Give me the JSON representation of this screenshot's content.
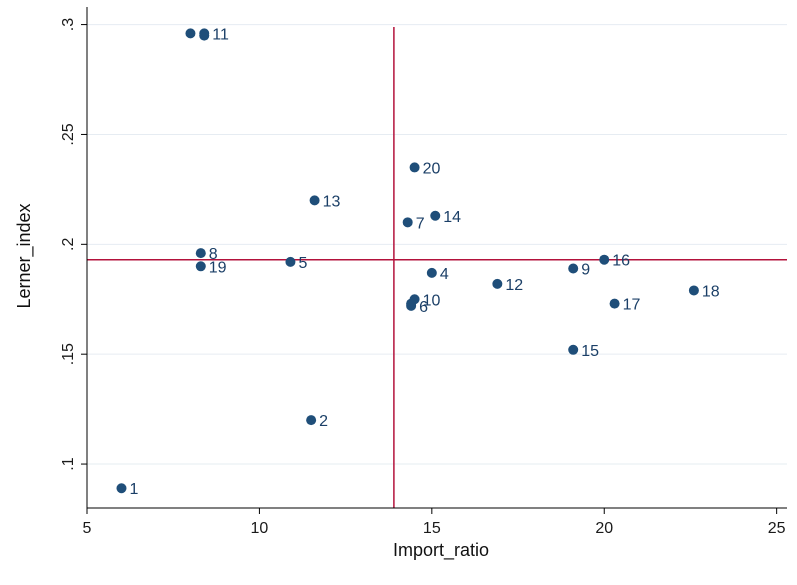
{
  "chart_data": {
    "type": "scatter",
    "title": "",
    "xlabel": "Import_ratio",
    "ylabel": "Lerner_index",
    "xlim": [
      5,
      25.3
    ],
    "ylim": [
      0.08,
      0.308
    ],
    "x_ticks": [
      {
        "value": 5,
        "label": "5"
      },
      {
        "value": 10,
        "label": "10"
      },
      {
        "value": 15,
        "label": "15"
      },
      {
        "value": 20,
        "label": "20"
      },
      {
        "value": 25,
        "label": "25"
      }
    ],
    "y_ticks": [
      {
        "value": 0.1,
        "label": ".1"
      },
      {
        "value": 0.15,
        "label": ".15"
      },
      {
        "value": 0.2,
        "label": ".2"
      },
      {
        "value": 0.25,
        "label": ".25"
      },
      {
        "value": 0.3,
        "label": ".3"
      }
    ],
    "grid": true,
    "reference_lines": {
      "x": 13.9,
      "y": 0.193
    },
    "points": [
      {
        "label": "1",
        "x": 6.0,
        "y": 0.089
      },
      {
        "label": "2",
        "x": 11.5,
        "y": 0.12
      },
      {
        "label": "4",
        "x": 15.0,
        "y": 0.187
      },
      {
        "label": "5",
        "x": 10.9,
        "y": 0.192
      },
      {
        "label": "6",
        "x": 14.4,
        "y": 0.172
      },
      {
        "label": "7",
        "x": 14.3,
        "y": 0.21
      },
      {
        "label": "8",
        "x": 8.3,
        "y": 0.196
      },
      {
        "label": "9",
        "x": 19.1,
        "y": 0.189
      },
      {
        "label": "10",
        "x": 14.5,
        "y": 0.175
      },
      {
        "label": "11",
        "x": 8.4,
        "y": 0.296
      },
      {
        "label": "12",
        "x": 16.9,
        "y": 0.182
      },
      {
        "label": "13",
        "x": 11.6,
        "y": 0.22
      },
      {
        "label": "14",
        "x": 15.1,
        "y": 0.213
      },
      {
        "label": "15",
        "x": 19.1,
        "y": 0.152
      },
      {
        "label": "16",
        "x": 20.0,
        "y": 0.193
      },
      {
        "label": "17",
        "x": 20.3,
        "y": 0.173
      },
      {
        "label": "18",
        "x": 22.6,
        "y": 0.179
      },
      {
        "label": "19",
        "x": 8.3,
        "y": 0.19
      },
      {
        "label": "20",
        "x": 14.5,
        "y": 0.235
      },
      {
        "label": "",
        "x": 8.0,
        "y": 0.296
      },
      {
        "label": "",
        "x": 14.4,
        "y": 0.173
      },
      {
        "label": "",
        "x": 8.4,
        "y": 0.295
      }
    ],
    "colors": {
      "point": "#1f4e79",
      "reference_line": "#b3123b",
      "grid": "#e6ecf2",
      "axis": "#000000"
    }
  }
}
